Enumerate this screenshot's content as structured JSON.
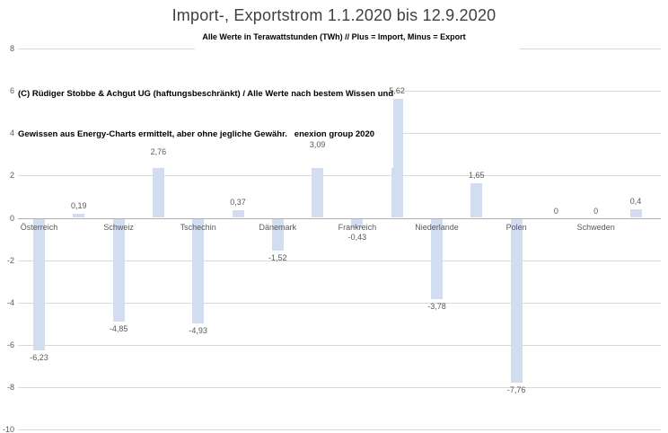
{
  "header": {
    "title": "Import-, Exportstrom 1.1.2020 bis 12.9.2020",
    "subtitle": "Alle Werte in Terawattstunden (TWh) // Plus = Import, Minus = Export"
  },
  "annotation": {
    "line1": "(C) Rüdiger Stobbe & Achgut UG (haftungsbeschränkt) / Alle Werte nach bestem Wissen und",
    "line2": "Gewissen aus Energy-Charts ermittelt, aber ohne jegliche Gewähr.   enexion group 2020"
  },
  "chart_data": {
    "type": "bar",
    "title": "Import-, Exportstrom 1.1.2020 bis 12.9.2020",
    "subtitle": "Alle Werte in Terawattstunden (TWh) // Plus = Import, Minus = Export",
    "unit": "TWh",
    "ylim": [
      -10,
      8
    ],
    "yticks": [
      8,
      6,
      4,
      2,
      0,
      -2,
      -4,
      -6,
      -8,
      -10
    ],
    "grid": true,
    "legend": false,
    "colors": {
      "bar_fill": "#d2ddf0",
      "gridline": "#d9d9d9",
      "zero_axis": "#b0b0b0",
      "labels": "#595959"
    },
    "points": [
      {
        "category": "Österreich",
        "value": -6.23,
        "label": "-6,23"
      },
      {
        "category": "",
        "value": 0.19,
        "label": "0,19"
      },
      {
        "category": "Schweiz",
        "value": -4.85,
        "label": "-4,85"
      },
      {
        "category": "",
        "value": 2.76,
        "label": "2,76"
      },
      {
        "category": "Tschechin",
        "value": -4.93,
        "label": "-4,93"
      },
      {
        "category": "",
        "value": 0.37,
        "label": "0,37"
      },
      {
        "category": "Dänemark",
        "value": -1.52,
        "label": "-1,52"
      },
      {
        "category": "",
        "value": 3.09,
        "label": "3,09"
      },
      {
        "category": "Frankreich",
        "value": -0.43,
        "label": "-0,43"
      },
      {
        "category": "",
        "value": 5.62,
        "label": "5,62"
      },
      {
        "category": "Niederlande",
        "value": -3.78,
        "label": "-3,78"
      },
      {
        "category": "",
        "value": 1.65,
        "label": "1,65"
      },
      {
        "category": "Polen",
        "value": -7.76,
        "label": "-7,76"
      },
      {
        "category": "",
        "value": 0,
        "label": "0"
      },
      {
        "category": "Schweden",
        "value": 0,
        "label": "0"
      },
      {
        "category": "",
        "value": 0.4,
        "label": "0,4"
      }
    ]
  }
}
